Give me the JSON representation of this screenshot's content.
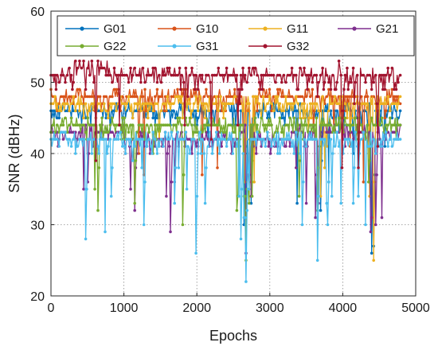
{
  "chart_data": {
    "type": "line",
    "title": "",
    "xlabel": "Epochs",
    "ylabel": "SNR (dBHz)",
    "xlim": [
      0,
      5000
    ],
    "ylim": [
      20,
      60
    ],
    "xticks": [
      0,
      1000,
      2000,
      3000,
      4000,
      5000
    ],
    "yticks": [
      20,
      30,
      40,
      50,
      60
    ],
    "xtick_labels": [
      "0",
      "1000",
      "2000",
      "3000",
      "4000",
      "5000"
    ],
    "ytick_labels": [
      "20",
      "30",
      "40",
      "50",
      "60"
    ],
    "grid": true,
    "legend_position": "top",
    "epoch_end": 4800,
    "series": [
      {
        "name": "G01",
        "color": "#0072BD",
        "base": 46,
        "x": [
          0,
          200,
          600,
          1000,
          1400,
          1900,
          2300,
          2600,
          2650,
          2700,
          2800,
          3300,
          3600,
          3700,
          4000,
          4300,
          4400,
          4450,
          4800
        ],
        "values": [
          46,
          46,
          46,
          46,
          46,
          46,
          46,
          46,
          30,
          46,
          46,
          46,
          46,
          32,
          46,
          46,
          26,
          46,
          46
        ],
        "dips": [
          [
            2650,
            30
          ],
          [
            2680,
            26
          ],
          [
            4400,
            26
          ],
          [
            4430,
            27
          ],
          [
            3700,
            32
          ]
        ]
      },
      {
        "name": "G10",
        "color": "#D95319",
        "base": 48,
        "x": [
          0,
          300,
          800,
          1500,
          2000,
          2500,
          2650,
          2700,
          3000,
          3500,
          3800,
          4200,
          4500,
          4800
        ],
        "values": [
          48,
          48,
          48,
          48,
          48,
          48,
          40,
          48,
          48,
          48,
          46,
          48,
          48,
          48
        ],
        "dips": [
          [
            2650,
            40
          ],
          [
            3600,
            43
          ],
          [
            4350,
            44
          ],
          [
            4000,
            45
          ]
        ]
      },
      {
        "name": "G11",
        "color": "#EDB120",
        "base": 47,
        "x": [
          0,
          400,
          1000,
          1800,
          2400,
          2650,
          2700,
          3200,
          3700,
          4000,
          4400,
          4450,
          4800
        ],
        "values": [
          45,
          47,
          47,
          47,
          47,
          36,
          47,
          47,
          44,
          47,
          25,
          47,
          47
        ],
        "dips": [
          [
            2660,
            36
          ],
          [
            3750,
            38
          ],
          [
            4430,
            25
          ],
          [
            4100,
            43
          ]
        ]
      },
      {
        "name": "G21",
        "color": "#7E2F8E",
        "base": 43,
        "x": [
          0,
          500,
          1000,
          1500,
          2000,
          2600,
          2680,
          2750,
          3300,
          3600,
          3900,
          4200,
          4400,
          4800
        ],
        "values": [
          43,
          43,
          42,
          42,
          42,
          42,
          26,
          42,
          42,
          31,
          40,
          42,
          29,
          43
        ],
        "dips": [
          [
            500,
            36
          ],
          [
            1150,
            32
          ],
          [
            1640,
            29
          ],
          [
            2680,
            26
          ],
          [
            3500,
            33
          ],
          [
            3620,
            31
          ],
          [
            4380,
            29
          ],
          [
            4450,
            30
          ]
        ]
      },
      {
        "name": "G22",
        "color": "#77AC30",
        "base": 44,
        "x": [
          0,
          300,
          700,
          1100,
          1500,
          1900,
          2300,
          2650,
          2700,
          3200,
          3600,
          3900,
          4300,
          4800
        ],
        "values": [
          45,
          44,
          43,
          44,
          43,
          44,
          44,
          25,
          43,
          44,
          34,
          44,
          34,
          42
        ],
        "dips": [
          [
            650,
            32
          ],
          [
            1150,
            33
          ],
          [
            1400,
            40
          ],
          [
            1800,
            30
          ],
          [
            2670,
            25
          ],
          [
            3400,
            34
          ],
          [
            3650,
            32
          ],
          [
            4350,
            34
          ]
        ]
      },
      {
        "name": "G31",
        "color": "#4DBEEE",
        "base": 42,
        "x": [
          0,
          250,
          500,
          800,
          1250,
          1600,
          2000,
          2300,
          2600,
          2680,
          2750,
          3100,
          3500,
          3650,
          3900,
          4200,
          4400,
          4800
        ],
        "values": [
          41,
          42,
          28,
          42,
          30,
          42,
          26,
          42,
          41,
          22,
          42,
          42,
          30,
          25,
          42,
          33,
          42,
          42
        ],
        "dips": [
          [
            480,
            28
          ],
          [
            820,
            34
          ],
          [
            1280,
            30
          ],
          [
            1700,
            33
          ],
          [
            1990,
            26
          ],
          [
            2120,
            33
          ],
          [
            2600,
            28
          ],
          [
            2680,
            22
          ],
          [
            3450,
            30
          ],
          [
            3660,
            25
          ],
          [
            3800,
            30
          ],
          [
            4150,
            33
          ]
        ]
      },
      {
        "name": "G32",
        "color": "#A2142F",
        "base": 51,
        "x": [
          0,
          300,
          800,
          1300,
          1800,
          2300,
          2800,
          3300,
          3800,
          3950,
          4000,
          4300,
          4800
        ],
        "values": [
          51,
          52,
          52,
          51,
          52,
          51,
          52,
          51,
          52,
          53,
          49,
          52,
          51
        ],
        "dips": [
          [
            3950,
            53
          ],
          [
            4000,
            46
          ],
          [
            4080,
            49
          ],
          [
            2650,
            50
          ]
        ]
      }
    ]
  }
}
